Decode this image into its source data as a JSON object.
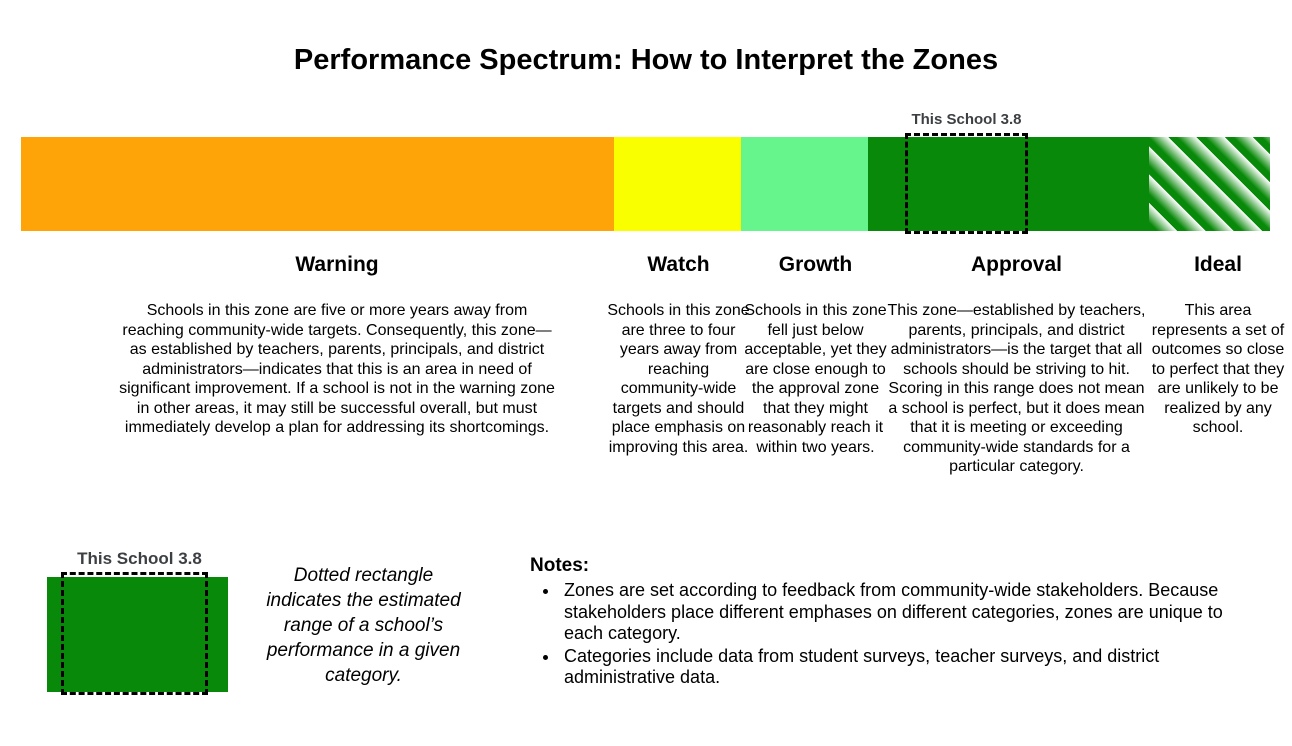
{
  "title": "Performance Spectrum: How to Interpret the Zones",
  "school_score_label": "This School 3.8",
  "bar": {
    "zones": [
      {
        "label": "Warning",
        "color": "#FFA408",
        "pattern": "solid",
        "description": "Schools in this zone are five or more years away from reaching community-wide targets. Consequently, this zone—as established by teachers, parents, principals, and district administrators—indicates that this is an area in need of significant improvement. If a school is not in the warning zone in other areas, it may still be successful overall, but must immediately develop a plan for addressing its shortcomings."
      },
      {
        "label": "Watch",
        "color": "#FAFF00",
        "pattern": "solid",
        "description": "Schools in this zone are three to four years away from reaching community-wide targets and should place emphasis on improving this area."
      },
      {
        "label": "Growth",
        "color": "#66F58C",
        "pattern": "solid",
        "description": "Schools in this zone fell just below acceptable, yet they are close enough to the approval zone that they might reasonably reach it within two years."
      },
      {
        "label": "Approval",
        "color": "#098909",
        "pattern": "solid",
        "description": "This zone—established by teachers, parents, principals, and district administrators—is the target that all schools should be striving to hit. Scoring in this range does not mean a school is perfect, but it does mean that it is meeting or exceeding community-wide standards for a particular category."
      },
      {
        "label": "Ideal",
        "color": "#098909",
        "pattern": "diagonal-stripes-green-white",
        "description": "This area represents a set of outcomes so close to perfect that they are unlikely to be realized by any school."
      }
    ]
  },
  "legend": {
    "marker_label": "This School 3.8",
    "caption": "Dotted rectangle indicates the estimated range of a school’s performance in a given category."
  },
  "notes": {
    "heading": "Notes:",
    "items": [
      "Zones are set according to feedback from community-wide stakeholders. Because stakeholders place different emphases on different categories, zones are unique to each category.",
      "Categories include data from student surveys, teacher surveys, and district administrative data."
    ]
  },
  "colors": {
    "orange": "#FFA408",
    "yellow": "#FAFF00",
    "light_green": "#66F58C",
    "dark_green": "#098909",
    "marker_text": "#3D4043",
    "marker_border": "#000000"
  }
}
